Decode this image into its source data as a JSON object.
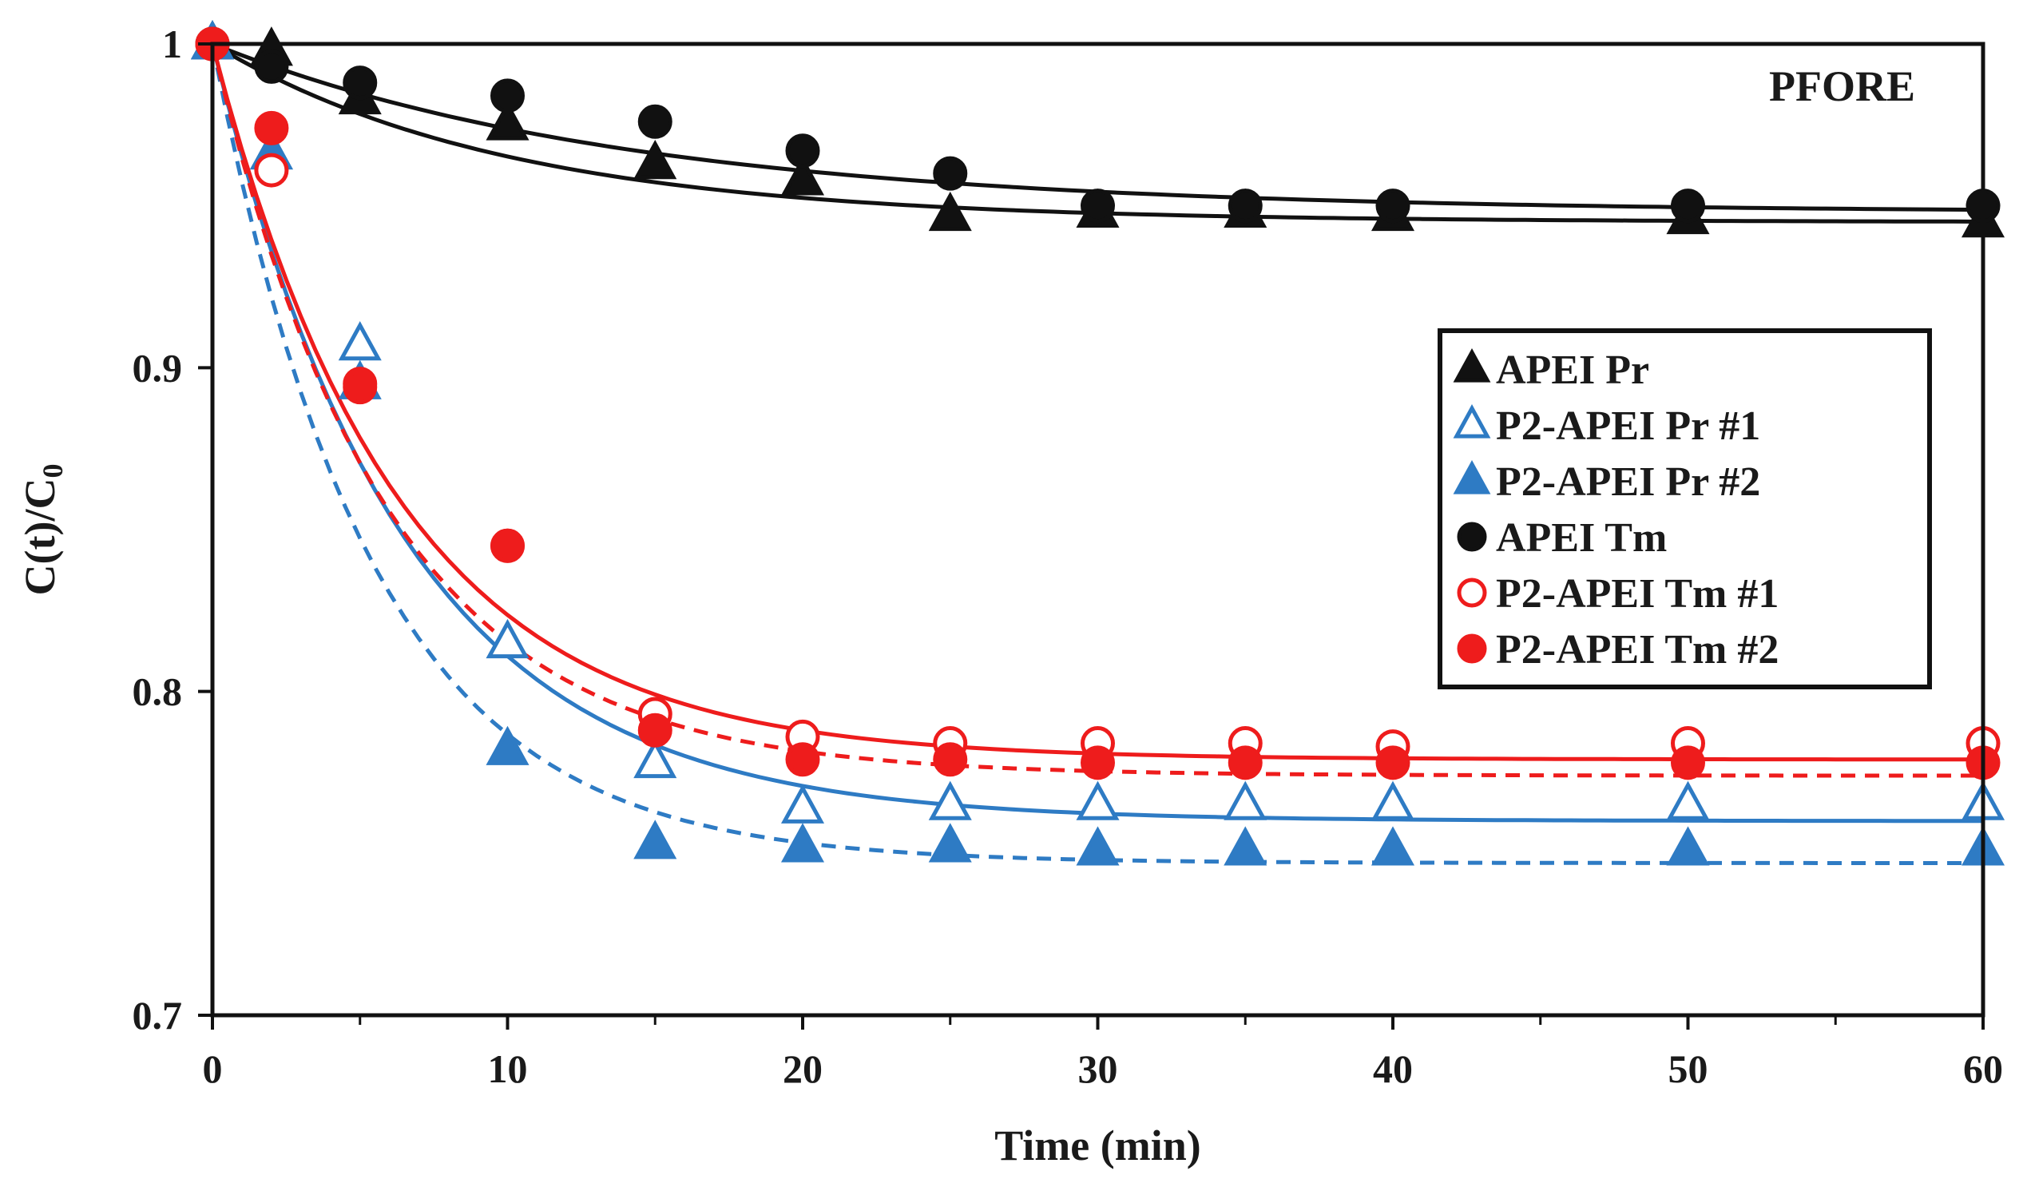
{
  "chart_data": {
    "type": "scatter",
    "annotation": "PFORE",
    "xlabel": "Time (min)",
    "ylabel": "C(t)/C",
    "ylabel_subscript": "0",
    "xlim": [
      0,
      60
    ],
    "ylim": [
      0.7,
      1.0
    ],
    "x_ticks": [
      0,
      10,
      20,
      30,
      40,
      50,
      60
    ],
    "x_tick_labels": [
      "0",
      "10",
      "20",
      "30",
      "40",
      "50",
      "60"
    ],
    "x_minor_ticks": [
      5,
      15,
      25,
      35,
      45,
      55
    ],
    "y_ticks": [
      0.7,
      0.8,
      0.9,
      1.0
    ],
    "y_tick_labels": [
      "0.7",
      "0.8",
      "0.9",
      "1"
    ],
    "grid": false,
    "legend_position": "right-middle",
    "colors": {
      "black": "#111111",
      "blue": "#2e7bc4",
      "red": "#ee1c1c"
    },
    "series": [
      {
        "name": "APEI Pr",
        "marker": "triangle",
        "fill": true,
        "color": "#111111",
        "x": [
          0,
          2,
          5,
          10,
          15,
          20,
          25,
          30,
          35,
          40,
          50,
          60
        ],
        "y": [
          1.0,
          0.998,
          0.983,
          0.975,
          0.963,
          0.958,
          0.947,
          0.948,
          0.948,
          0.947,
          0.946,
          0.945
        ]
      },
      {
        "name": "P2-APEI Pr #1",
        "marker": "triangle",
        "fill": false,
        "color": "#2e7bc4",
        "x": [
          0,
          2,
          5,
          10,
          15,
          20,
          25,
          30,
          35,
          40,
          50,
          60
        ],
        "y": [
          1.0,
          0.966,
          0.907,
          0.815,
          0.778,
          0.764,
          0.765,
          0.765,
          0.765,
          0.765,
          0.765,
          0.765
        ]
      },
      {
        "name": "P2-APEI Pr #2",
        "marker": "triangle",
        "fill": true,
        "color": "#2e7bc4",
        "x": [
          0,
          2,
          5,
          10,
          15,
          20,
          25,
          30,
          35,
          40,
          50,
          60
        ],
        "y": [
          1.0,
          0.966,
          0.895,
          0.782,
          0.753,
          0.752,
          0.752,
          0.751,
          0.751,
          0.751,
          0.751,
          0.751
        ]
      },
      {
        "name": "APEI Tm",
        "marker": "circle",
        "fill": true,
        "color": "#111111",
        "x": [
          0,
          2,
          5,
          10,
          15,
          20,
          25,
          30,
          35,
          40,
          50,
          60
        ],
        "y": [
          1.0,
          0.993,
          0.988,
          0.984,
          0.976,
          0.967,
          0.96,
          0.95,
          0.95,
          0.95,
          0.95,
          0.95
        ]
      },
      {
        "name": "P2-APEI Tm #1",
        "marker": "circle",
        "fill": false,
        "color": "#ee1c1c",
        "x": [
          0,
          2,
          5,
          10,
          15,
          20,
          25,
          30,
          35,
          40,
          50,
          60
        ],
        "y": [
          1.0,
          0.961,
          0.895,
          0.845,
          0.793,
          0.786,
          0.784,
          0.784,
          0.784,
          0.783,
          0.784,
          0.784
        ]
      },
      {
        "name": "P2-APEI Tm #2",
        "marker": "circle",
        "fill": true,
        "color": "#ee1c1c",
        "x": [
          0,
          2,
          5,
          10,
          15,
          20,
          25,
          30,
          35,
          40,
          50,
          60
        ],
        "y": [
          1.0,
          0.974,
          0.894,
          0.845,
          0.788,
          0.779,
          0.779,
          0.778,
          0.778,
          0.778,
          0.778,
          0.778
        ]
      }
    ],
    "fit_curves": [
      {
        "color": "#111111",
        "dashed": false,
        "c_inf": 0.945,
        "k": 0.1
      },
      {
        "color": "#111111",
        "dashed": false,
        "c_inf": 0.948,
        "k": 0.07
      },
      {
        "color": "#2e7bc4",
        "dashed": false,
        "c_inf": 0.76,
        "k": 0.155
      },
      {
        "color": "#2e7bc4",
        "dashed": true,
        "c_inf": 0.747,
        "k": 0.185
      },
      {
        "color": "#ee1c1c",
        "dashed": false,
        "c_inf": 0.779,
        "k": 0.16
      },
      {
        "color": "#ee1c1c",
        "dashed": true,
        "c_inf": 0.774,
        "k": 0.17
      }
    ]
  }
}
